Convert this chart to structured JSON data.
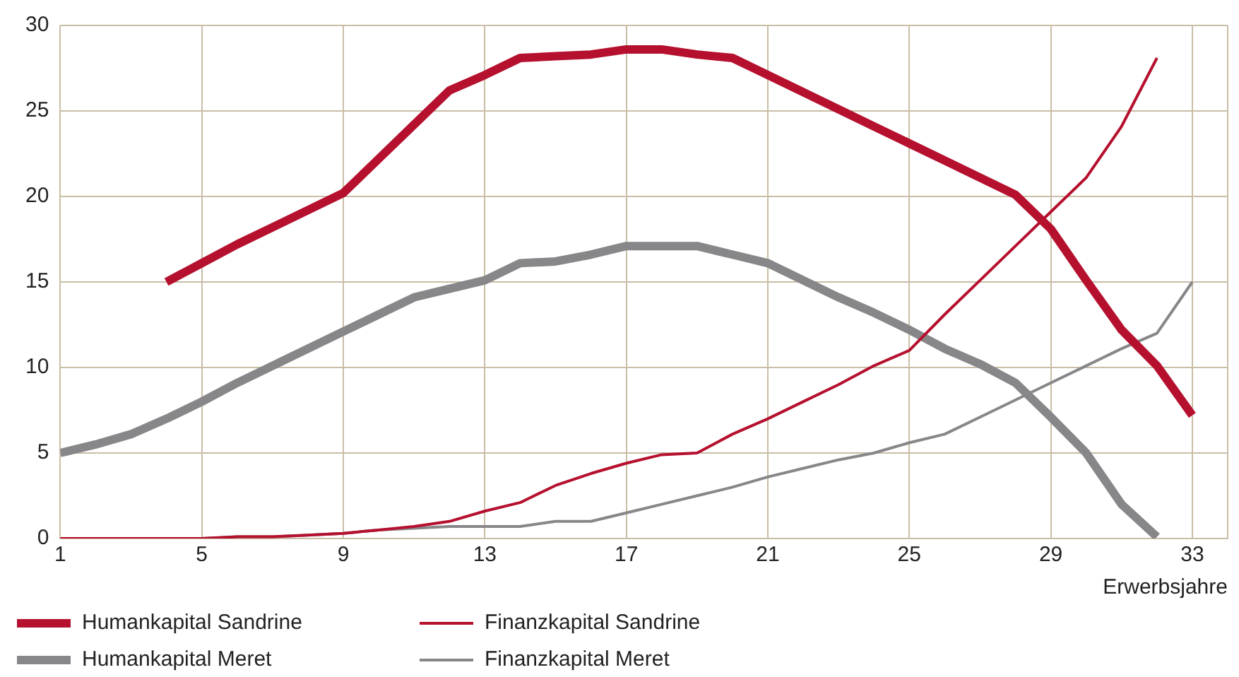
{
  "chart_data": {
    "type": "line",
    "xlabel": "Erwerbsjahre",
    "x": [
      1,
      2,
      3,
      4,
      5,
      6,
      7,
      8,
      9,
      10,
      11,
      12,
      13,
      14,
      15,
      16,
      17,
      18,
      19,
      20,
      21,
      22,
      23,
      24,
      25,
      26,
      27,
      28,
      29,
      30,
      31,
      32,
      33
    ],
    "series": [
      {
        "name": "Humankapital Sandrine",
        "color": "#b5102e",
        "values": [
          null,
          null,
          null,
          15,
          16.1,
          17.2,
          18.2,
          19.2,
          20.2,
          22.2,
          24.2,
          26.2,
          27.1,
          28.1,
          28.2,
          28.3,
          28.6,
          28.6,
          28.3,
          28.1,
          27.1,
          26.1,
          25.1,
          24.1,
          23.1,
          22.1,
          21.1,
          20.1,
          18.1,
          15.1,
          12.2,
          10.1,
          7.2
        ]
      },
      {
        "name": "Finanzkapital Sandrine",
        "color": "#b5102e",
        "values": [
          0,
          0,
          0,
          0,
          0,
          0.1,
          0.1,
          0.2,
          0.3,
          0.5,
          0.7,
          1,
          1.6,
          2.1,
          3.1,
          3.8,
          4.4,
          4.9,
          5,
          6.1,
          7,
          8,
          9,
          10.1,
          11,
          13.1,
          15.1,
          17.1,
          19.1,
          21.1,
          24.1,
          28.1,
          null
        ]
      },
      {
        "name": "Humankapital Meret",
        "color": "#87878a",
        "values": [
          5,
          5.5,
          6.1,
          7,
          8,
          9.1,
          10.1,
          11.1,
          12.1,
          13.1,
          14.1,
          14.6,
          15.1,
          16.1,
          16.2,
          16.6,
          17.1,
          17.1,
          17.1,
          16.6,
          16.1,
          15.1,
          14.1,
          13.2,
          12.2,
          11.1,
          10.2,
          9.1,
          7.1,
          5,
          2,
          0.1,
          null
        ]
      },
      {
        "name": "Finanzkapital Meret",
        "color": "#87878a",
        "values": [
          0,
          0,
          0,
          0,
          0,
          0.1,
          0.1,
          0.2,
          0.3,
          0.5,
          0.6,
          0.7,
          0.7,
          0.7,
          1,
          1,
          1.5,
          2,
          2.5,
          3,
          3.6,
          4.1,
          4.6,
          5,
          5.6,
          6.1,
          7.1,
          8.1,
          9.1,
          10.1,
          11.1,
          12,
          15
        ]
      }
    ],
    "xlim": [
      1,
      34
    ],
    "xticks": [
      1,
      5,
      9,
      13,
      17,
      21,
      25,
      29,
      33
    ],
    "ylim": [
      0,
      30
    ],
    "yticks": [
      0,
      5,
      10,
      15,
      20,
      25,
      30
    ],
    "grid": true,
    "legend": "bottom",
    "marker": "none",
    "line_style": "solid"
  }
}
